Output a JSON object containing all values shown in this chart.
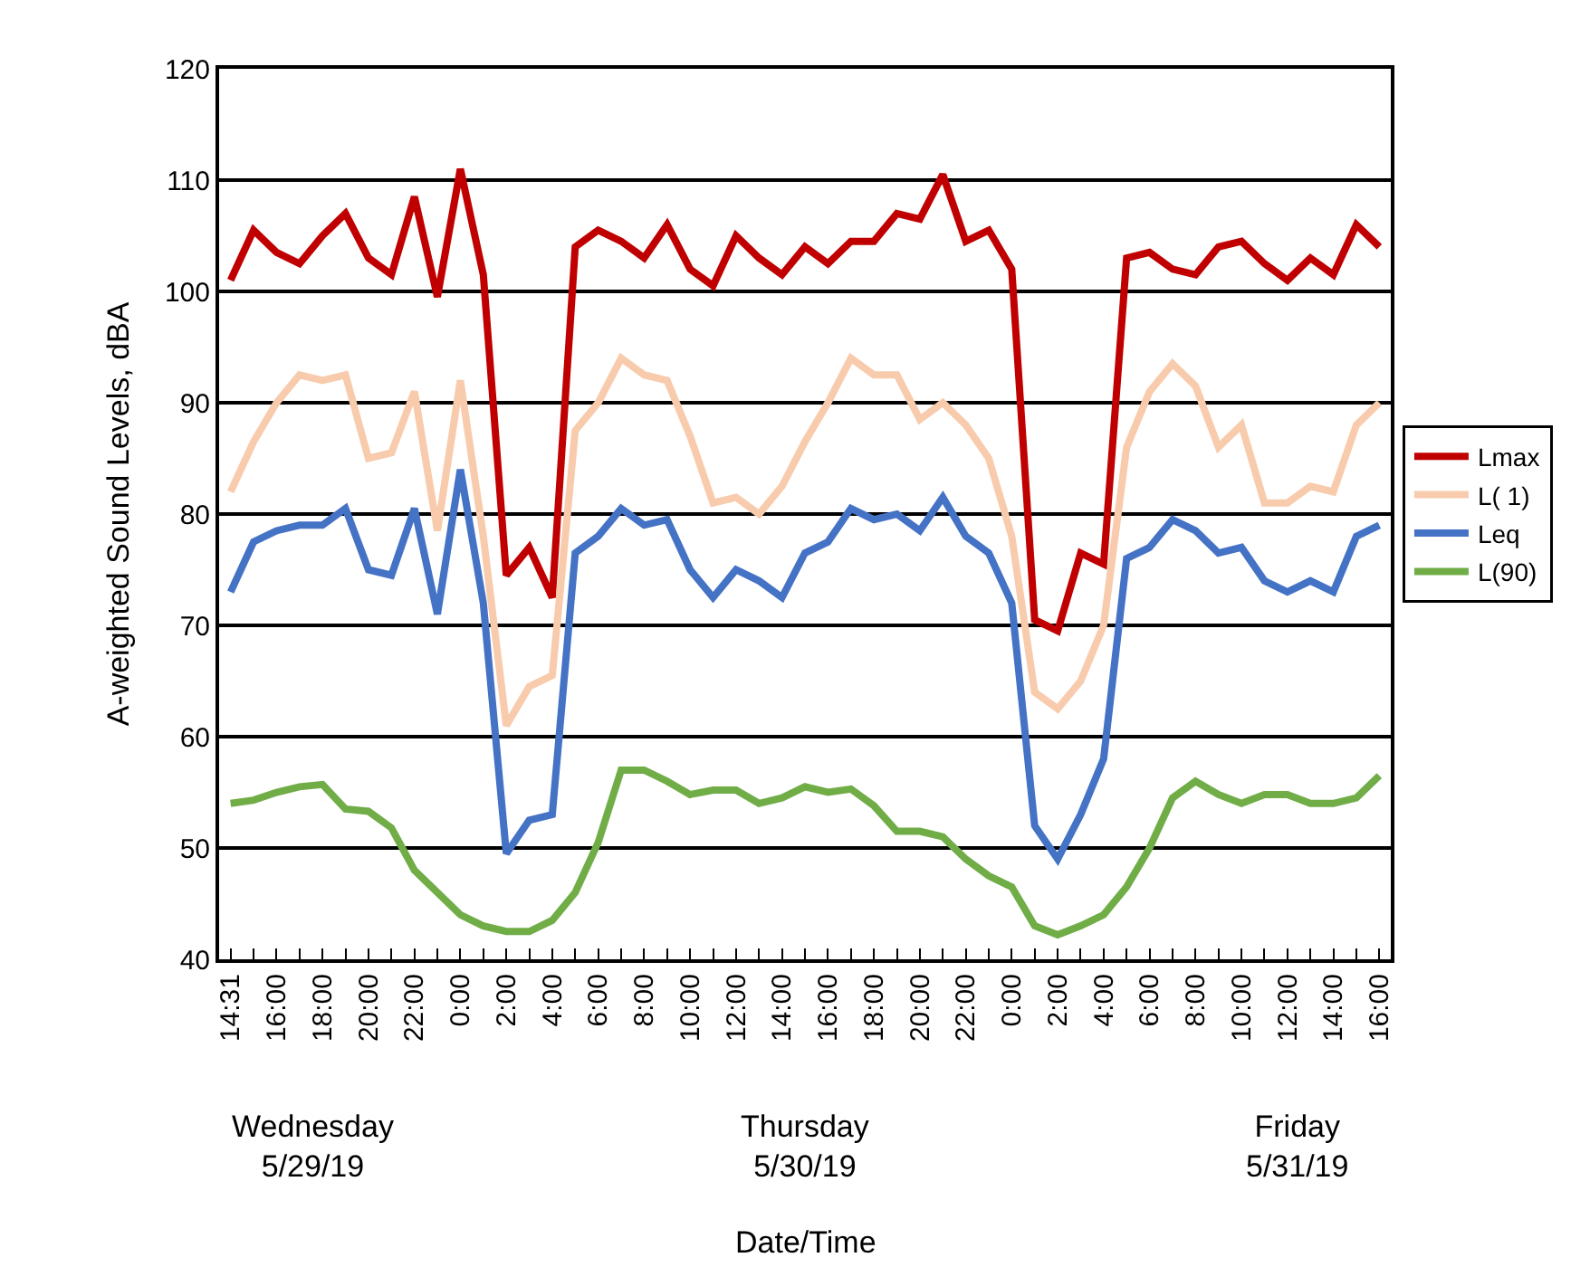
{
  "chart_data": {
    "type": "line",
    "ylabel": "A-weighted Sound Levels, dBA",
    "categories": [
      "14:31",
      null,
      "16:00",
      null,
      "18:00",
      null,
      "20:00",
      null,
      "22:00",
      null,
      "0:00",
      null,
      "2:00",
      null,
      "4:00",
      null,
      "6:00",
      null,
      "8:00",
      null,
      "10:00",
      null,
      "12:00",
      null,
      "14:00",
      null,
      "16:00",
      null,
      "18:00",
      null,
      "20:00",
      null,
      "22:00",
      null,
      "0:00",
      null,
      "2:00",
      null,
      "4:00",
      null,
      "6:00",
      null,
      "8:00",
      null,
      "10:00",
      null,
      "12:00",
      null,
      "14:00",
      null,
      "16:00"
    ],
    "series": [
      {
        "name": "Lmax",
        "color": "#c00000",
        "values": [
          101,
          105.5,
          103.5,
          102.5,
          105,
          107,
          103,
          101.5,
          108.5,
          99.5,
          111,
          101.5,
          74.5,
          77,
          72.5,
          104,
          105.5,
          104.5,
          103,
          106,
          102,
          100.5,
          105,
          103,
          101.5,
          104,
          102.5,
          104.5,
          104.5,
          107,
          106.5,
          110.5,
          104.5,
          105.5,
          102,
          70.5,
          69.5,
          76.5,
          75.5,
          103,
          103.5,
          102,
          101.5,
          104,
          104.5,
          102.5,
          101,
          103,
          101.5,
          106,
          104
        ]
      },
      {
        "name": "L( 1)",
        "color": "#f8cbad",
        "values": [
          82,
          86.5,
          90,
          92.5,
          92,
          92.5,
          85,
          85.5,
          91,
          78.5,
          92,
          78,
          61,
          64.5,
          65.5,
          87.5,
          90,
          94,
          92.5,
          92,
          87,
          81,
          81.5,
          80,
          82.5,
          86.5,
          90,
          94,
          92.5,
          92.5,
          88.5,
          90,
          88,
          85,
          78,
          64,
          62.5,
          65,
          70,
          86,
          91,
          93.5,
          91.5,
          86,
          88,
          81,
          81,
          82.5,
          82,
          88,
          90
        ]
      },
      {
        "name": "Leq",
        "color": "#4472c4",
        "values": [
          73,
          77.5,
          78.5,
          79,
          79,
          80.5,
          75,
          74.5,
          80.5,
          71,
          84,
          72,
          49.5,
          52.5,
          53,
          76.5,
          78,
          80.5,
          79,
          79.5,
          75,
          72.5,
          75,
          74,
          72.5,
          76.5,
          77.5,
          80.5,
          79.5,
          80,
          78.5,
          81.5,
          78,
          76.5,
          72,
          52,
          49,
          53,
          58,
          76,
          77,
          79.5,
          78.5,
          76.5,
          77,
          74,
          73,
          74,
          73,
          78,
          79
        ]
      },
      {
        "name": "L(90)",
        "color": "#70ad47",
        "values": [
          54,
          54.3,
          55,
          55.5,
          55.7,
          53.5,
          53.3,
          51.8,
          48,
          46,
          44,
          43,
          42.5,
          42.5,
          43.5,
          46,
          50.5,
          57,
          57,
          56,
          54.8,
          55.2,
          55.2,
          54,
          54.5,
          55.5,
          55,
          55.3,
          53.8,
          51.5,
          51.5,
          51,
          49,
          47.5,
          46.5,
          43,
          42.2,
          43,
          44,
          46.5,
          50,
          54.5,
          56,
          54.8,
          54,
          54.8,
          54.8,
          54,
          54,
          54.5,
          56.5
        ]
      }
    ],
    "ylim": [
      40,
      120
    ],
    "yticks": [
      40,
      50,
      60,
      70,
      80,
      90,
      100,
      110,
      120
    ],
    "grid": "y",
    "legend": "right",
    "marker": "none",
    "line_style": "solid",
    "annotations": [
      "Wednesday\n5/29/19",
      "Thursday\n5/30/19",
      "Friday\n5/31/19",
      "Date/Time"
    ]
  }
}
